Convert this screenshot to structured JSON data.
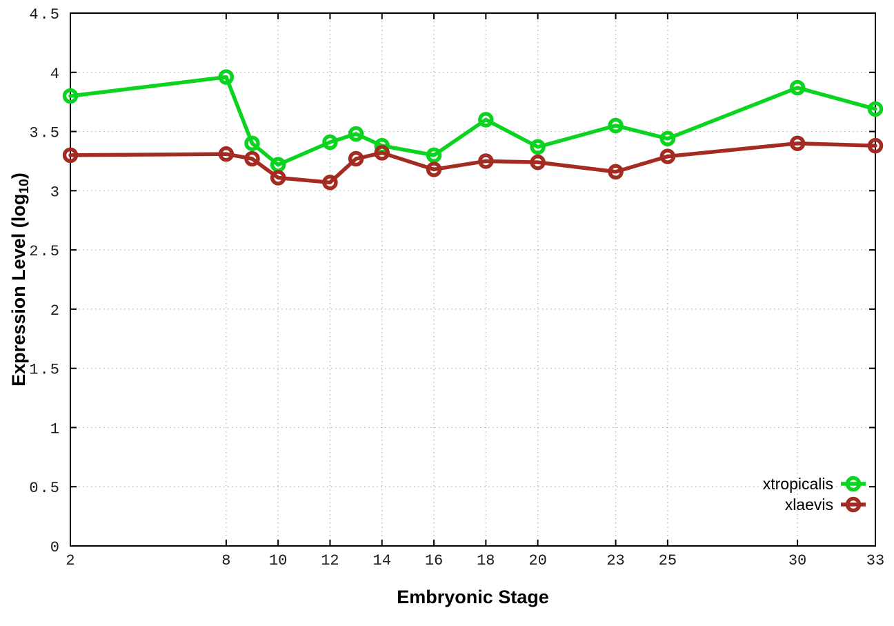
{
  "chart": {
    "x_axis": {
      "title": "Embryonic Stage",
      "tick_labels": [
        "2",
        "8",
        "10",
        "12",
        "14",
        "16",
        "18",
        "20",
        "23",
        "25",
        "30",
        "33"
      ],
      "tick_values": [
        2,
        8,
        10,
        12,
        14,
        16,
        18,
        20,
        23,
        25,
        30,
        33
      ]
    },
    "y_axis": {
      "title_prefix": "Expression Level (log",
      "title_sub": "10",
      "title_suffix": ")",
      "tick_labels": [
        "0",
        "0.5",
        "1",
        "1.5",
        "2",
        "2.5",
        "3",
        "3.5",
        "4",
        "4.5"
      ],
      "tick_values": [
        0,
        0.5,
        1,
        1.5,
        2,
        2.5,
        3,
        3.5,
        4,
        4.5
      ]
    },
    "legend": [
      {
        "label": "xtropicalis",
        "color": "#0bd420"
      },
      {
        "label": "xlaevis",
        "color": "#a32b22"
      }
    ]
  },
  "chart_data": {
    "type": "line",
    "title": "",
    "xlabel": "Embryonic Stage",
    "ylabel": "Expression Level (log10)",
    "x": [
      2,
      8,
      9,
      10,
      12,
      13,
      14,
      16,
      18,
      20,
      23,
      25,
      30,
      33
    ],
    "series": [
      {
        "name": "xtropicalis",
        "color": "#0bd420",
        "values": [
          3.8,
          3.96,
          3.4,
          3.22,
          3.41,
          3.48,
          3.38,
          3.3,
          3.6,
          3.37,
          3.55,
          3.44,
          3.87,
          3.69
        ]
      },
      {
        "name": "xlaevis",
        "color": "#a32b22",
        "values": [
          3.3,
          3.31,
          3.27,
          3.11,
          3.07,
          3.27,
          3.32,
          3.18,
          3.25,
          3.24,
          3.16,
          3.29,
          3.4,
          3.38
        ]
      }
    ],
    "xlim": [
      2,
      33
    ],
    "ylim": [
      0,
      4.5
    ],
    "grid": true,
    "grid_style": "dotted",
    "legend_position": "bottom-right",
    "marker": "open-circle",
    "line_width": 5.5,
    "marker_radius": 8.5,
    "colors": {
      "border": "#000000",
      "grid": "#b0b0b0",
      "tick_text": "#1a1a1a"
    }
  }
}
